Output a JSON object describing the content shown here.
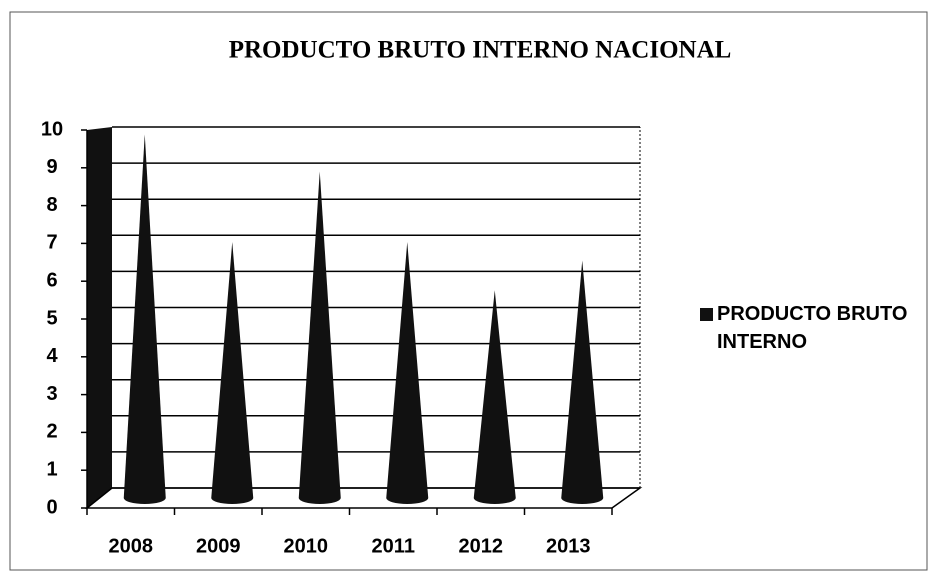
{
  "chart_data": {
    "type": "cone",
    "title": "PRODUCTO BRUTO INTERNO NACIONAL",
    "categories": [
      "2008",
      "2009",
      "2010",
      "2011",
      "2012",
      "2013"
    ],
    "series": [
      {
        "name": "PRODUCTO BRUTO INTERNO",
        "color": "#111111",
        "values": [
          9.8,
          6.9,
          8.8,
          6.9,
          5.6,
          6.4
        ]
      }
    ],
    "ylim": [
      0,
      10
    ],
    "yticks": [
      0,
      1,
      2,
      3,
      4,
      5,
      6,
      7,
      8,
      9,
      10
    ],
    "grid": true,
    "legend": "right"
  }
}
